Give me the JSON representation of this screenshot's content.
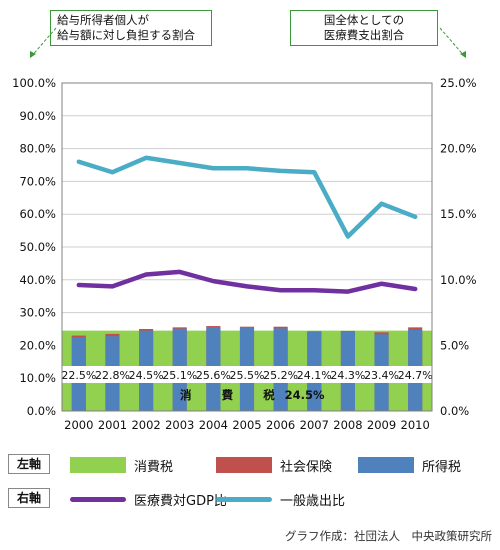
{
  "callouts": {
    "left": [
      "給与所得者個人が",
      "給与額に対し負担する割合"
    ],
    "right": [
      "国全体としての",
      "医療費支出割合"
    ]
  },
  "chart_data": {
    "type": "bar",
    "categories": [
      "2000",
      "2001",
      "2002",
      "2003",
      "2004",
      "2005",
      "2006",
      "2007",
      "2008",
      "2009",
      "2010"
    ],
    "left_axis": {
      "ticks": [
        "0.0%",
        "10.0%",
        "20.0%",
        "30.0%",
        "40.0%",
        "50.0%",
        "60.0%",
        "70.0%",
        "80.0%",
        "90.0%",
        "100.0%"
      ],
      "ylim": [
        0,
        100
      ]
    },
    "right_axis": {
      "ticks": [
        "0.0%",
        "5.0%",
        "10.0%",
        "15.0%",
        "20.0%",
        "25.0%"
      ],
      "ylim": [
        0,
        25
      ]
    },
    "grid": true,
    "consumption_tax_label": [
      "消",
      "費",
      "税",
      "24.5%"
    ],
    "series": [
      {
        "name": "消費税",
        "axis": "left",
        "kind": "area",
        "color": "#92d050",
        "values": [
          24.5,
          24.5,
          24.5,
          24.5,
          24.5,
          24.5,
          24.5,
          24.5,
          24.5,
          24.5,
          24.5
        ]
      },
      {
        "name": "社会保険",
        "axis": "left",
        "kind": "bar",
        "color": "#c0504d",
        "values": [
          23.0,
          23.5,
          25.0,
          25.5,
          25.9,
          25.7,
          25.7,
          24.3,
          24.4,
          24.0,
          25.5
        ]
      },
      {
        "name": "所得税",
        "axis": "left",
        "kind": "bar",
        "color": "#4f81bd",
        "values": [
          22.5,
          22.8,
          24.5,
          25.1,
          25.6,
          25.5,
          25.2,
          24.1,
          24.3,
          23.4,
          24.7
        ]
      },
      {
        "name": "医療費対GDP比",
        "axis": "right",
        "kind": "line",
        "color": "#7030a0",
        "values": [
          9.6,
          9.5,
          10.4,
          10.6,
          9.9,
          9.5,
          9.2,
          9.2,
          9.1,
          9.7,
          9.3
        ]
      },
      {
        "name": "一般歳出比",
        "axis": "right",
        "kind": "line",
        "color": "#4bacc6",
        "values": [
          19.0,
          18.2,
          19.3,
          18.9,
          18.5,
          18.5,
          18.3,
          18.2,
          13.3,
          15.8,
          14.8
        ]
      }
    ],
    "data_labels": [
      "22.5%",
      "22.8%",
      "24.5%",
      "25.1%",
      "25.6%",
      "25.5%",
      "25.2%",
      "24.1%",
      "24.3%",
      "23.4%",
      "24.7%"
    ]
  },
  "legend": {
    "left_axis_tag": "左軸",
    "right_axis_tag": "右軸",
    "items_left": [
      "消費税",
      "社会保険",
      "所得税"
    ],
    "items_right": [
      "医療費対GDP比",
      "一般歳出比"
    ]
  },
  "credit": "グラフ作成：社団法人　中央政策研究所"
}
